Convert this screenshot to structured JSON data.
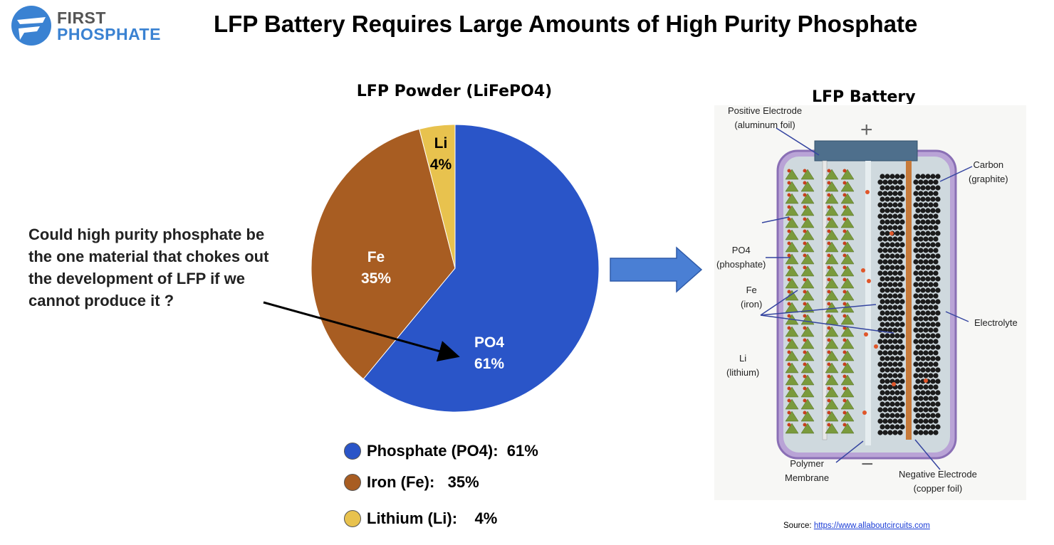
{
  "logo": {
    "line1": "FIRST",
    "line2": "PHOSPHATE",
    "color": "#3a82d2"
  },
  "title": "LFP Battery Requires Large Amounts of High Purity Phosphate",
  "question": "Could high purity phosphate be the one material that chokes out the development of LFP if we cannot produce it ?",
  "chart_data": {
    "type": "pie",
    "title": "LFP Powder (LiFePO4)",
    "start": "top",
    "direction": "clockwise",
    "slices": [
      {
        "label": "PO4",
        "value": 61,
        "display": "61%",
        "color": "#2a55c8",
        "legend": "Phosphate (PO4):  61%"
      },
      {
        "label": "Fe",
        "value": 35,
        "display": "35%",
        "color": "#a85d22",
        "legend": "Iron (Fe):   35%"
      },
      {
        "label": "Li",
        "value": 4,
        "display": "4%",
        "color": "#e8c24e",
        "legend": "Lithium (Li):    4%"
      }
    ]
  },
  "battery": {
    "title": "LFP Battery",
    "plus": "+",
    "minus": "−",
    "labels": {
      "positive": [
        "Positive Electrode",
        "(aluminum foil)"
      ],
      "carbon": [
        "Carbon",
        "(graphite)"
      ],
      "po4": [
        "PO4",
        "(phosphate)"
      ],
      "fe": [
        "Fe",
        "(iron)"
      ],
      "electrolyte": [
        "Electrolyte"
      ],
      "li": [
        "Li",
        "(lithium)"
      ],
      "membrane": [
        "Polymer",
        "Membrane"
      ],
      "negative": [
        "Negative Electrode",
        "(copper foil)"
      ]
    }
  },
  "source": {
    "label": "Source: ",
    "link": "https://www.allaboutcircuits.com"
  }
}
